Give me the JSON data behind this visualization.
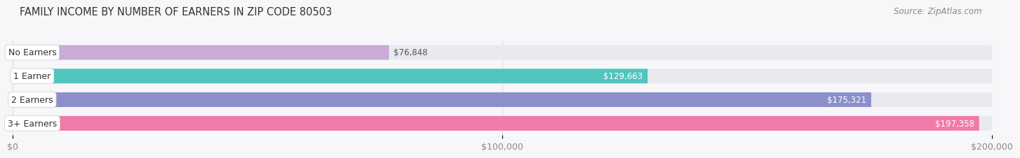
{
  "title": "FAMILY INCOME BY NUMBER OF EARNERS IN ZIP CODE 80503",
  "source": "Source: ZipAtlas.com",
  "categories": [
    "No Earners",
    "1 Earner",
    "2 Earners",
    "3+ Earners"
  ],
  "values": [
    76848,
    129663,
    175321,
    197358
  ],
  "max_value": 200000,
  "bar_colors": [
    "#caabd8",
    "#52c5be",
    "#8b8fcc",
    "#f07aaa"
  ],
  "bar_bg_color": "#e9e9f0",
  "value_label_colors": [
    "#888888",
    "#ffffff",
    "#ffffff",
    "#ffffff"
  ],
  "value_labels": [
    "$76,848",
    "$129,663",
    "$175,321",
    "$197,358"
  ],
  "xtick_labels": [
    "$0",
    "$100,000",
    "$200,000"
  ],
  "xtick_values": [
    0,
    100000,
    200000
  ],
  "background_color": "#f7f7fa",
  "title_fontsize": 10.5,
  "source_fontsize": 8.5,
  "bar_label_fontsize": 9,
  "value_fontsize": 8.5,
  "tick_fontsize": 9,
  "bar_height": 0.62,
  "bar_gap": 1.0
}
